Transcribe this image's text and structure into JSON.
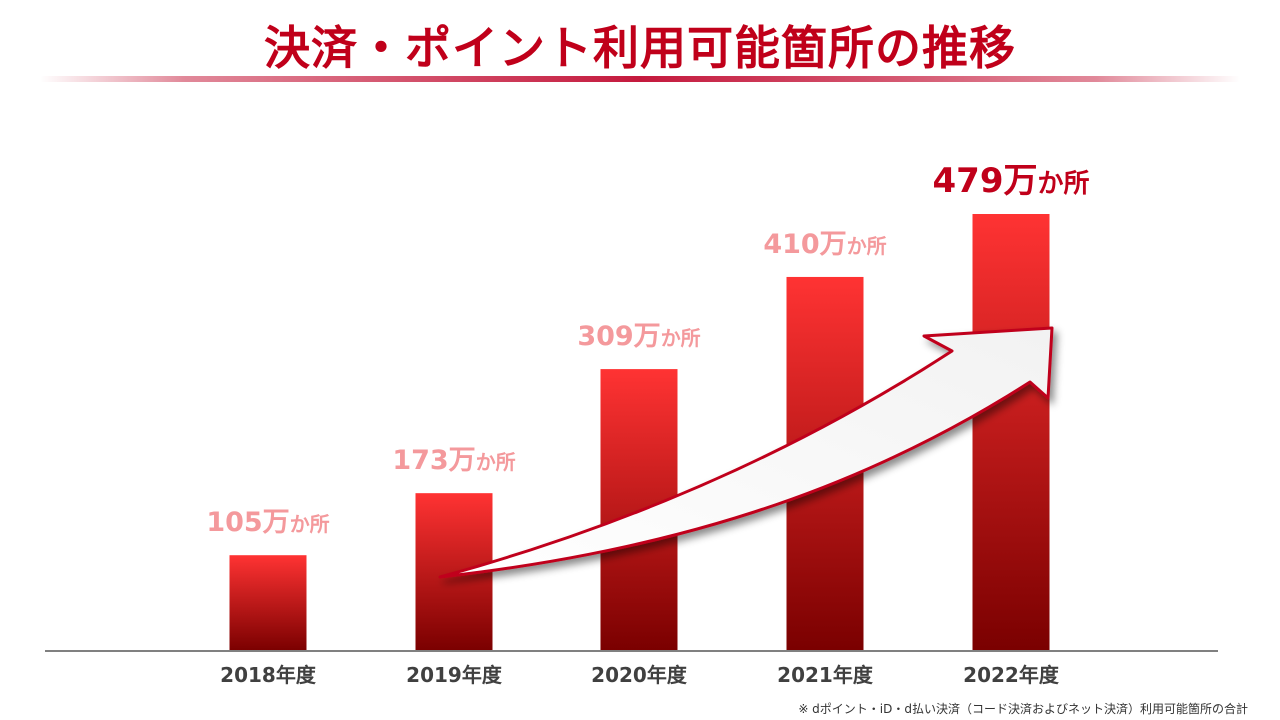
{
  "chart_data": {
    "type": "bar",
    "title": "決済・ポイント利用可能箇所の推移",
    "categories": [
      "2018年度",
      "2019年度",
      "2020年度",
      "2021年度",
      "2022年度"
    ],
    "values": [
      105,
      173,
      309,
      410,
      479
    ],
    "value_labels": [
      "105",
      "173",
      "309",
      "410",
      "479"
    ],
    "unit_man": "万",
    "unit_kasho": "か所",
    "ylim": [
      0,
      479
    ],
    "xlabel": "",
    "ylabel": "",
    "grid": false,
    "annotation": "upward growth arrow",
    "colors": {
      "bar_top": "#ff3333",
      "bar_bottom": "#7a0000",
      "label_normal": "#f4999c",
      "label_highlight": "#c0001a",
      "axis": "#808080"
    }
  },
  "footnote": "※ dポイント・iD・d払い決済（コード決済およびネット決済）利用可能箇所の合計"
}
